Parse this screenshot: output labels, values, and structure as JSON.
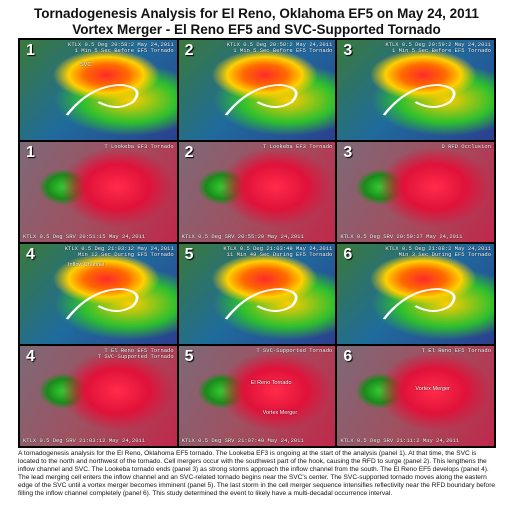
{
  "title_line1": "Tornadogenesis Analysis for El Reno, Oklahoma EF5 on May 24, 2011",
  "title_line2": "Vortex Merger - El Reno EF5 and SVC-Supported Tornado",
  "panels": [
    {
      "num": "1",
      "type": "refl",
      "hdr": "KTLX 0.5 Deg  20:58:2  May 24,2011",
      "sub": "1 Min 5 Sec Before EF5 Tornado",
      "ann": [
        {
          "text": "SVC",
          "pos": "a1"
        }
      ],
      "ftr": ""
    },
    {
      "num": "2",
      "type": "refl",
      "hdr": "KTLX 0.5 Deg  20:58:2  May 24,2011",
      "sub": "1 Min 5 Sec Before EF5 Tornado",
      "ann": [],
      "ftr": ""
    },
    {
      "num": "3",
      "type": "refl",
      "hdr": "KTLX 0.5 Deg  20:59:2  May 24,2011",
      "sub": "1 Min 5 Sec Before EF5 Tornado",
      "ann": [],
      "ftr": ""
    },
    {
      "num": "1",
      "type": "vel",
      "hdr": "T Lookeba EF3 Tornado",
      "sub": "",
      "ann": [],
      "ftr": "KTLX  0.5 Deg  SRV  20:51:15  May 24,2011"
    },
    {
      "num": "2",
      "type": "vel",
      "hdr": "T Lookeba EF3 Tornado",
      "sub": "",
      "ann": [],
      "ftr": "KTLX  0.5 Deg  SRV  20:55:20  May 24,2011"
    },
    {
      "num": "3",
      "type": "vel",
      "hdr": "D  RFD Occlusion",
      "sub": "",
      "ann": [],
      "ftr": "KTLX  0.5 Deg  SRV  20:59:27  May 24,2011"
    },
    {
      "num": "4",
      "type": "refl",
      "hdr": "KTLX 0.5 Deg  21:03:12  May 24,2011",
      "sub": "Min 12 Sec During EF5 Tornado",
      "ann": [
        {
          "text": "Inflow Channel",
          "pos": "a2"
        }
      ],
      "ftr": ""
    },
    {
      "num": "5",
      "type": "refl",
      "hdr": "KTLX 0.5 Deg  21:03:49  May 24,2011",
      "sub": "11 Min 49 Sec During EF5 Tornado",
      "ann": [],
      "ftr": ""
    },
    {
      "num": "6",
      "type": "refl",
      "hdr": "KTLX 0.5 Deg  21:08:2  May 24,2011",
      "sub": "Min 3 Sec During EF5 Tornado",
      "ann": [],
      "ftr": ""
    },
    {
      "num": "4",
      "type": "vel",
      "hdr": "T  El Reno EF5 Tornado",
      "sub": "T  SVC-Supported Tornado",
      "ann": [],
      "ftr": "KTLX  0.5 Deg  SRV  21:03:12  May 24,2011"
    },
    {
      "num": "5",
      "type": "vel",
      "hdr": "T  SVC-Supported Tornado",
      "sub": "",
      "ann": [
        {
          "text": "El Reno Tornado",
          "pos": "a3"
        },
        {
          "text": "Vortex Merger",
          "pos": "a4"
        }
      ],
      "ftr": "KTLX  0.5 Deg  SRV  21:07:49  May 24,2011"
    },
    {
      "num": "6",
      "type": "vel",
      "hdr": "T  El Reno EF5 Tornado",
      "sub": "",
      "ann": [
        {
          "text": "Vortex Merger",
          "pos": "a5"
        }
      ],
      "ftr": "KTLX  0.5 Deg  SRV  21:11:2  May 24,2011"
    }
  ],
  "caption": "A tornadogenesis analysis for the El Reno, Oklahoma EF5 tornado. The Lookeba EF3 is ongoing at the start of the analysis (panel 1). At that time, the SVC is located to the north and northwest of the tornado. Cell mergers occur with the southwest part of the hook, causing the RFD to surge (panel 2). This lengthens the inflow channel and SVC. The Lookeba tornado ends (panel 3) as strong storms approach the inflow channel from the south. The El Reno EF5 develops (panel 4). The lead merging cell enters the inflow channel and an SVC-related tornado begins near the SVC's center. The SVC-supported tornado moves along the eastern edge of the SVC until a vortex merger becomes imminent (panel 5). The last storm in the cell merger sequence intensifies reflectivity near the RFD boundary before filling the inflow channel completely (panel 6). This study determined the event to likely have a multi-decadal occurrence interval."
}
